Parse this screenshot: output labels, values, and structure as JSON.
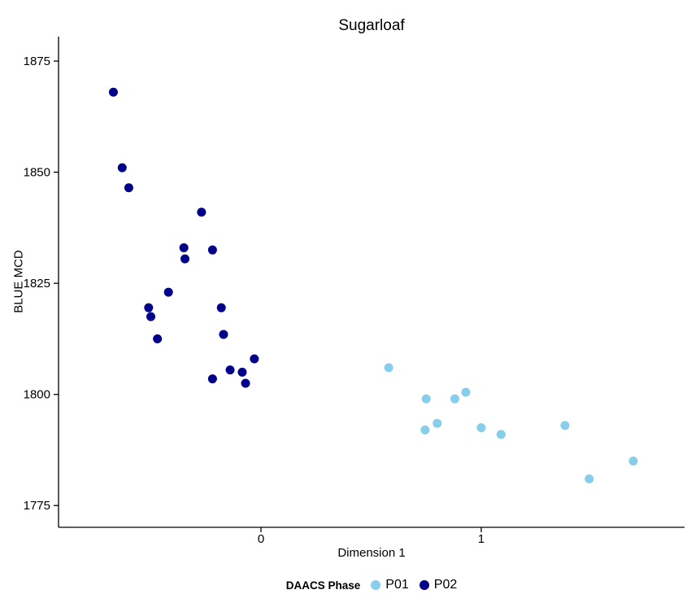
{
  "chart_data": {
    "type": "scatter",
    "title": "Sugarloaf",
    "xlabel": "Dimension 1",
    "ylabel": "BLUE MCD",
    "xlim": [
      -0.919,
      1.923
    ],
    "ylim": [
      1770.1,
      1880.5
    ],
    "x_ticks": [
      "0",
      "1"
    ],
    "x_tick_values": [
      0,
      1
    ],
    "y_ticks": [
      "1775",
      "1800",
      "1825",
      "1850",
      "1875"
    ],
    "y_tick_values": [
      1775,
      1800,
      1825,
      1850,
      1875
    ],
    "grid": false,
    "axis_color": "#000000",
    "legend": {
      "title": "DAACS Phase",
      "position": "bottom"
    },
    "series": [
      {
        "name": "P01",
        "color": "#87CEEB",
        "points": [
          [
            0.58,
            1806
          ],
          [
            0.75,
            1799
          ],
          [
            0.88,
            1799
          ],
          [
            0.93,
            1800.5
          ],
          [
            0.8,
            1793.5
          ],
          [
            0.745,
            1792
          ],
          [
            1.0,
            1792.5
          ],
          [
            1.09,
            1791
          ],
          [
            1.38,
            1793
          ],
          [
            1.69,
            1785
          ],
          [
            1.49,
            1781
          ]
        ]
      },
      {
        "name": "P02",
        "color": "#00008B",
        "points": [
          [
            -0.67,
            1868
          ],
          [
            -0.63,
            1851
          ],
          [
            -0.6,
            1846.5
          ],
          [
            -0.27,
            1841
          ],
          [
            -0.35,
            1833
          ],
          [
            -0.345,
            1830.5
          ],
          [
            -0.22,
            1832.5
          ],
          [
            -0.42,
            1823
          ],
          [
            -0.51,
            1819.5
          ],
          [
            -0.5,
            1817.5
          ],
          [
            -0.18,
            1819.5
          ],
          [
            -0.47,
            1812.5
          ],
          [
            -0.17,
            1813.5
          ],
          [
            -0.03,
            1808
          ],
          [
            -0.14,
            1805.5
          ],
          [
            -0.085,
            1805
          ],
          [
            -0.22,
            1803.5
          ],
          [
            -0.07,
            1802.5
          ]
        ]
      }
    ]
  }
}
